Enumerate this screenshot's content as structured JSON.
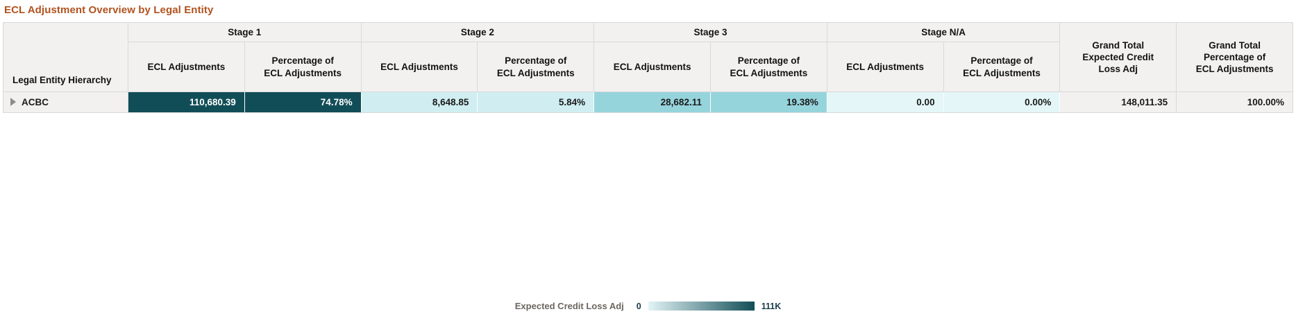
{
  "page": {
    "title": "ECL Adjustment Overview by Legal Entity"
  },
  "table": {
    "entity_column_header": "Legal Entity Hierarchy",
    "group_headers": [
      "Stage 1",
      "Stage 2",
      "Stage 3",
      "Stage N/A"
    ],
    "sub_header_ecl": "ECL Adjustments",
    "sub_header_pct": "Percentage of ECL Adjustments",
    "grand_total_ecl_header": "Grand Total Expected Credit Loss Adj",
    "grand_total_pct_header": "Grand Total Percentage of ECL Adjustments",
    "rows": [
      {
        "entity": "ACBC",
        "expand_icon": "right-triangle",
        "stage1_ecl": "110,680.39",
        "stage1_pct": "74.78%",
        "stage2_ecl": "8,648.85",
        "stage2_pct": "5.84%",
        "stage3_ecl": "28,682.11",
        "stage3_pct": "19.38%",
        "stage_na_ecl": "0.00",
        "stage_na_pct": "0.00%",
        "grand_total_ecl": "148,011.35",
        "grand_total_pct": "100.00%"
      }
    ]
  },
  "legend": {
    "label": "Expected Credit Loss Adj",
    "min": "0",
    "max": "111K",
    "gradient_from": "#e3f4f6",
    "gradient_to": "#114d57"
  },
  "colors": {
    "title_text": "#b1521e",
    "header_bg": "#f2f1f0",
    "grid_line": "#d9d9d9",
    "stage1_bg": "#114d57",
    "stage1_text": "#ffffff",
    "stage2_bg": "#d0eef1",
    "stage3_bg": "#96d4dc",
    "stage_na_bg": "#e4f6f8",
    "grand_total_bg": "#f2f1f0",
    "value_text": "#1a1a1a"
  }
}
